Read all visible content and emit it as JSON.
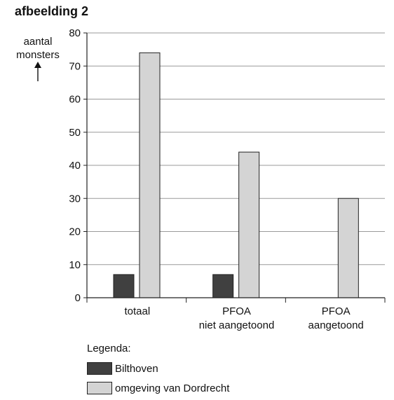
{
  "figure_title": "afbeelding 2",
  "colors": {
    "bilthoven": "#404040",
    "dordrecht": "#d4d4d4",
    "grid": "#9a9a9a",
    "axis": "#222222"
  },
  "chart_data": {
    "type": "bar",
    "ylabel": [
      "aantal",
      "monsters"
    ],
    "ylim": [
      0,
      80
    ],
    "yticks": [
      0,
      10,
      20,
      30,
      40,
      50,
      60,
      70,
      80
    ],
    "grid": true,
    "categories": [
      [
        "totaal"
      ],
      [
        "PFOA",
        "niet aangetoond"
      ],
      [
        "PFOA",
        "aangetoond"
      ]
    ],
    "series": [
      {
        "name": "Bilthoven",
        "values": [
          7,
          7,
          0
        ]
      },
      {
        "name": "omgeving van Dordrecht",
        "values": [
          74,
          44,
          30
        ]
      }
    ],
    "legend": {
      "title": "Legenda:",
      "position": "bottom"
    }
  }
}
